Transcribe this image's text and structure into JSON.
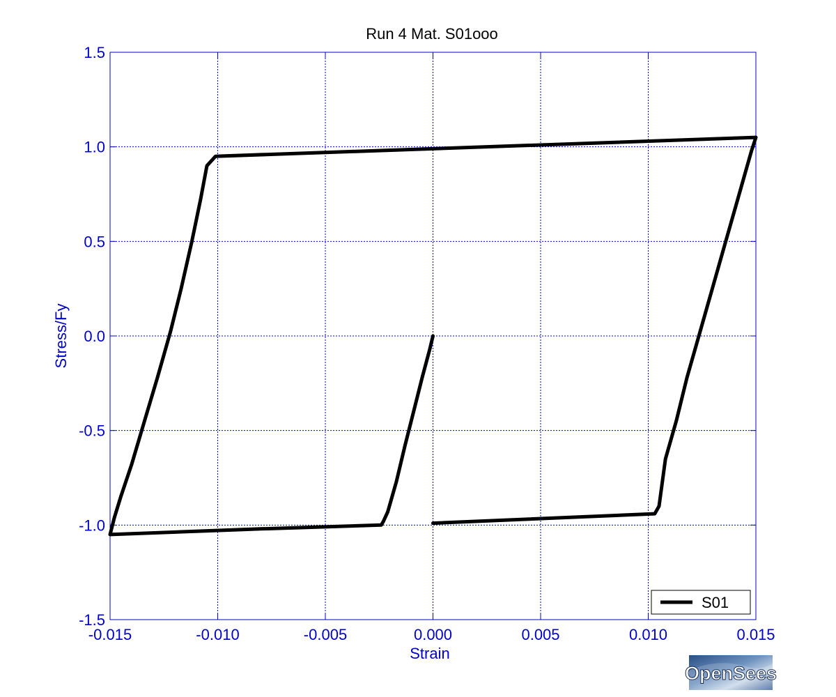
{
  "chart_data": {
    "type": "line",
    "title": "Run 4    Mat. S01ooo",
    "xlabel": "Strain",
    "ylabel": "Stress/Fy",
    "xlim": [
      -0.015,
      0.015
    ],
    "ylim": [
      -1.5,
      1.5
    ],
    "x_ticks": [
      -0.015,
      -0.01,
      -0.005,
      0.0,
      0.005,
      0.01,
      0.015
    ],
    "x_tick_labels": [
      "-0.015",
      "-0.010",
      "-0.005",
      "0.000",
      "0.005",
      "0.010",
      "0.015"
    ],
    "y_ticks": [
      1.5,
      1.0,
      0.5,
      0.0,
      -0.5,
      -1.0,
      -1.5
    ],
    "y_tick_labels": [
      "1.5",
      "1.0",
      "0.5",
      "0.0",
      "-0.5",
      "-1.0",
      "-1.5"
    ],
    "grid": true,
    "legend_position": "bottom-right",
    "colors": {
      "axis_text": "#0000cc",
      "grid": "#0000cc",
      "series": "#000000"
    },
    "series": [
      {
        "name": "S01",
        "x": [
          0.0,
          -0.00015,
          -0.0005,
          -0.0009,
          -0.0013,
          -0.0017,
          -0.0021,
          -0.0023,
          -0.0024,
          -0.008,
          -0.015,
          -0.0148,
          -0.0145,
          -0.014,
          -0.0134,
          -0.0128,
          -0.0122,
          -0.0117,
          -0.0112,
          -0.0108,
          -0.0105,
          -0.0101,
          0.0,
          0.015,
          0.0148,
          0.0145,
          0.0141,
          0.0136,
          0.013,
          0.0124,
          0.0118,
          0.0113,
          0.0108,
          0.0105,
          0.0103,
          0.0
        ],
        "y": [
          0.0,
          -0.07,
          -0.22,
          -0.4,
          -0.58,
          -0.77,
          -0.93,
          -0.98,
          -1.0,
          -1.02,
          -1.05,
          -0.96,
          -0.85,
          -0.68,
          -0.45,
          -0.22,
          0.02,
          0.25,
          0.5,
          0.72,
          0.9,
          0.95,
          0.99,
          1.05,
          0.98,
          0.86,
          0.7,
          0.5,
          0.26,
          0.02,
          -0.22,
          -0.45,
          -0.65,
          -0.9,
          -0.94,
          -0.99
        ]
      }
    ]
  },
  "legend": {
    "entries": [
      "S01"
    ]
  },
  "logo": {
    "text": "OpenSees"
  }
}
